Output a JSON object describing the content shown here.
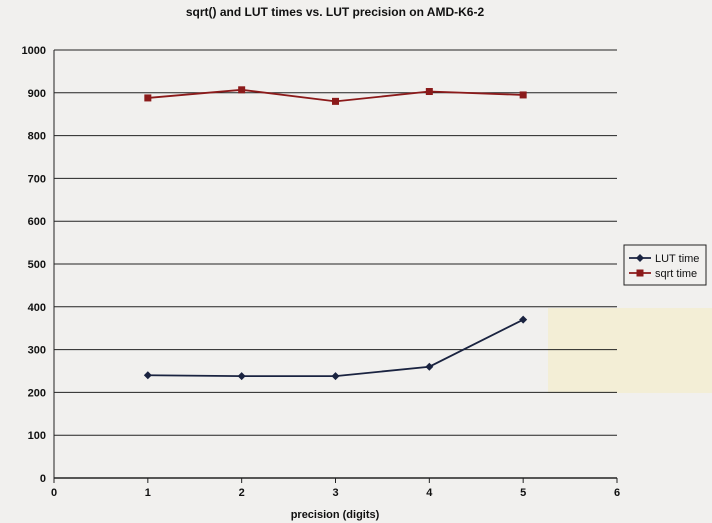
{
  "chart_data": {
    "type": "line",
    "title": "sqrt() and LUT times vs. LUT precision on AMD-K6-2",
    "xlabel": "precision (digits)",
    "ylabel": "",
    "xlim": [
      0,
      6
    ],
    "ylim": [
      0,
      1000
    ],
    "x_ticks": [
      0,
      1,
      2,
      3,
      4,
      5,
      6
    ],
    "y_ticks": [
      0,
      100,
      200,
      300,
      400,
      500,
      600,
      700,
      800,
      900,
      1000
    ],
    "grid": true,
    "legend_position": "right",
    "series": [
      {
        "name": "LUT time",
        "color": "#1a2340",
        "marker": "diamond",
        "x": [
          1,
          2,
          3,
          4,
          5
        ],
        "y": [
          240,
          238,
          238,
          260,
          370
        ]
      },
      {
        "name": "sqrt time",
        "color": "#8b1a1a",
        "marker": "square",
        "x": [
          1,
          2,
          3,
          4,
          5
        ],
        "y": [
          888,
          907,
          880,
          903,
          895
        ]
      }
    ]
  }
}
